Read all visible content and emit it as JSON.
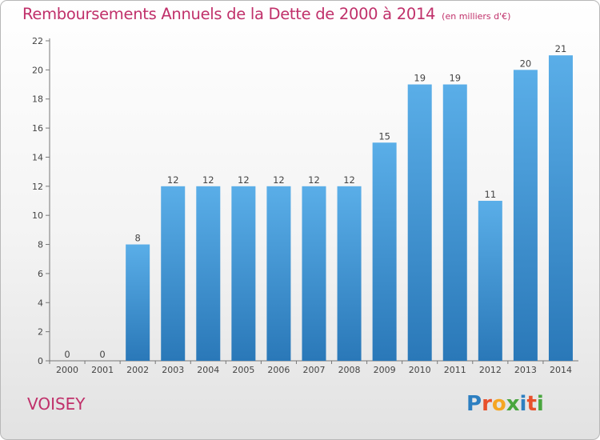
{
  "header": {
    "title": "Remboursements Annuels de la Dette de 2000 à 2014",
    "unit_note": "(en milliers d'€)"
  },
  "footer": {
    "place": "VOISEY",
    "logo_letters": [
      {
        "char": "P",
        "color": "#2d7fc1"
      },
      {
        "char": "r",
        "color": "#e8502b"
      },
      {
        "char": "o",
        "color": "#f5a623"
      },
      {
        "char": "x",
        "color": "#4aa63f"
      },
      {
        "char": "i",
        "color": "#2d7fc1"
      },
      {
        "char": "t",
        "color": "#e8502b"
      },
      {
        "char": "i",
        "color": "#4aa63f"
      }
    ]
  },
  "colors": {
    "bar_top": "#5aaee8",
    "bar_bottom": "#2a78b8",
    "title": "#c0306a"
  },
  "chart_data": {
    "type": "bar",
    "title": "Remboursements Annuels de la Dette de 2000 à 2014",
    "subtitle": "(en milliers d'€)",
    "categories": [
      "2000",
      "2001",
      "2002",
      "2003",
      "2004",
      "2005",
      "2006",
      "2007",
      "2008",
      "2009",
      "2010",
      "2011",
      "2012",
      "2013",
      "2014"
    ],
    "values": [
      0,
      0,
      8,
      12,
      12,
      12,
      12,
      12,
      12,
      15,
      19,
      19,
      11,
      20,
      21
    ],
    "ylim": [
      0,
      22
    ],
    "yticks": [
      0,
      2,
      4,
      6,
      8,
      10,
      12,
      14,
      16,
      18,
      20,
      22
    ],
    "grid": false,
    "legend": "none"
  }
}
